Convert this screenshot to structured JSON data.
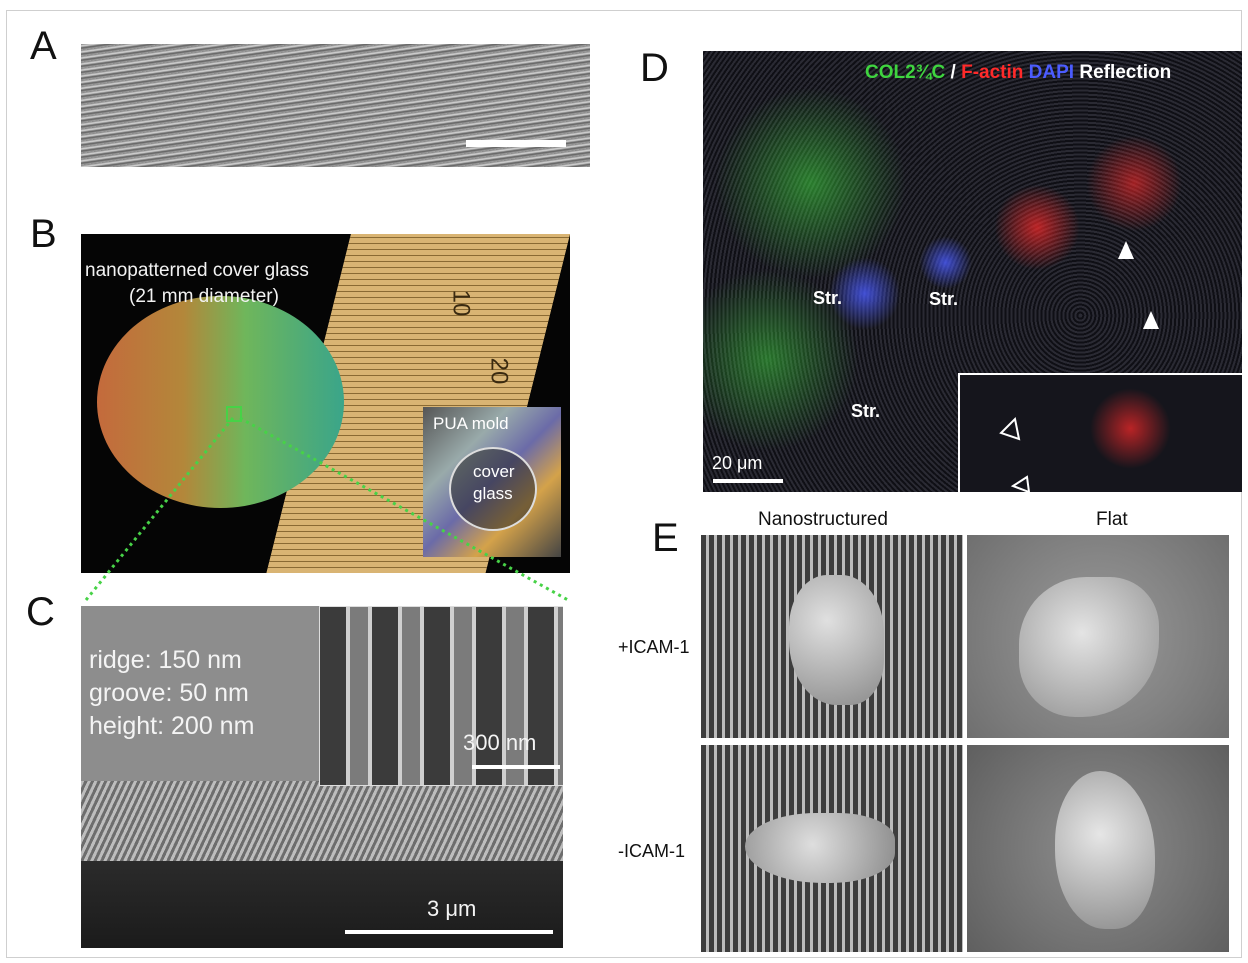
{
  "figure": {
    "panels": {
      "a": {
        "letter": "A"
      },
      "b": {
        "letter": "B",
        "caption_line1": "nanopatterned cover glass",
        "caption_line2": "(21 mm diameter)",
        "ruler_10": "10",
        "ruler_20": "20",
        "mold_label": "PUA mold",
        "glass_label_1": "cover",
        "glass_label_2": "glass"
      },
      "c": {
        "letter": "C",
        "ridge": "ridge: 150 nm",
        "groove": "groove: 50 nm",
        "height": "height: 200 nm",
        "inset_scale": "300 nm",
        "main_scale": "3 μm"
      },
      "d": {
        "letter": "D",
        "legend_col": "COL2¾C",
        "legend_slash": " / ",
        "legend_factin": "F-actin",
        "legend_dapi": " DAPI",
        "legend_reflection": " Reflection",
        "str1": "Str.",
        "str2": "Str.",
        "str3": "Str.",
        "scale": "20 μm"
      },
      "e": {
        "letter": "E",
        "col_nano": "Nanostructured",
        "col_flat": "Flat",
        "row_plus": "+ICAM-1",
        "row_minus": "-ICAM-1"
      }
    },
    "colors": {
      "green": "#3fd43f",
      "red": "#ff2a2a",
      "blue": "#4b5cff",
      "reflection": "#ffffff"
    }
  }
}
